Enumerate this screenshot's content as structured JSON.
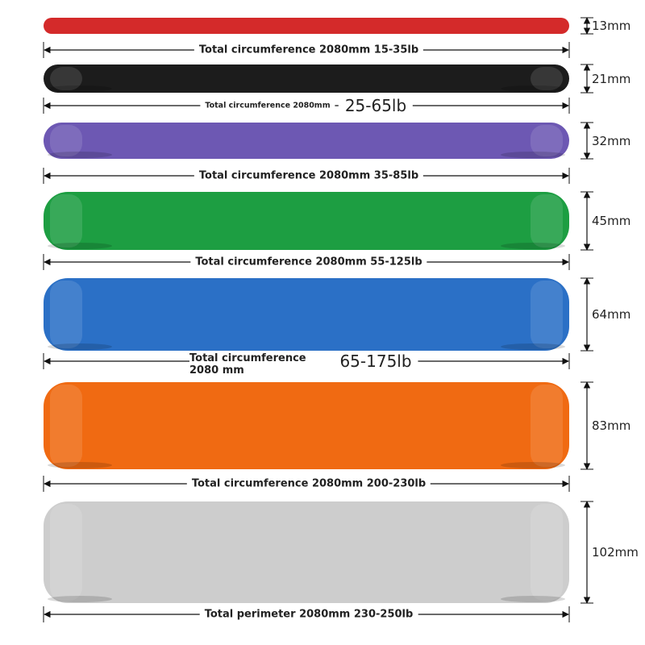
{
  "bands": [
    {
      "width": "13mm",
      "circumference": "Total circumference 2080mm 15-35lb"
    },
    {
      "width": "21mm",
      "circumference": "Total circumference 2080mm",
      "load": "25-65lb"
    },
    {
      "width": "32mm",
      "circumference": "Total circumference 2080mm 35-85lb"
    },
    {
      "width": "45mm",
      "circumference": "Total circumference 2080mm 55-125lb"
    },
    {
      "width": "64mm",
      "circumference": "Total circumference 2080 mm",
      "load": "65-175lb"
    },
    {
      "width": "83mm",
      "circumference": "Total circumference 2080mm 200-230lb"
    },
    {
      "width": "102mm",
      "circumference": "Total perimeter 2080mm 230-250lb"
    }
  ]
}
